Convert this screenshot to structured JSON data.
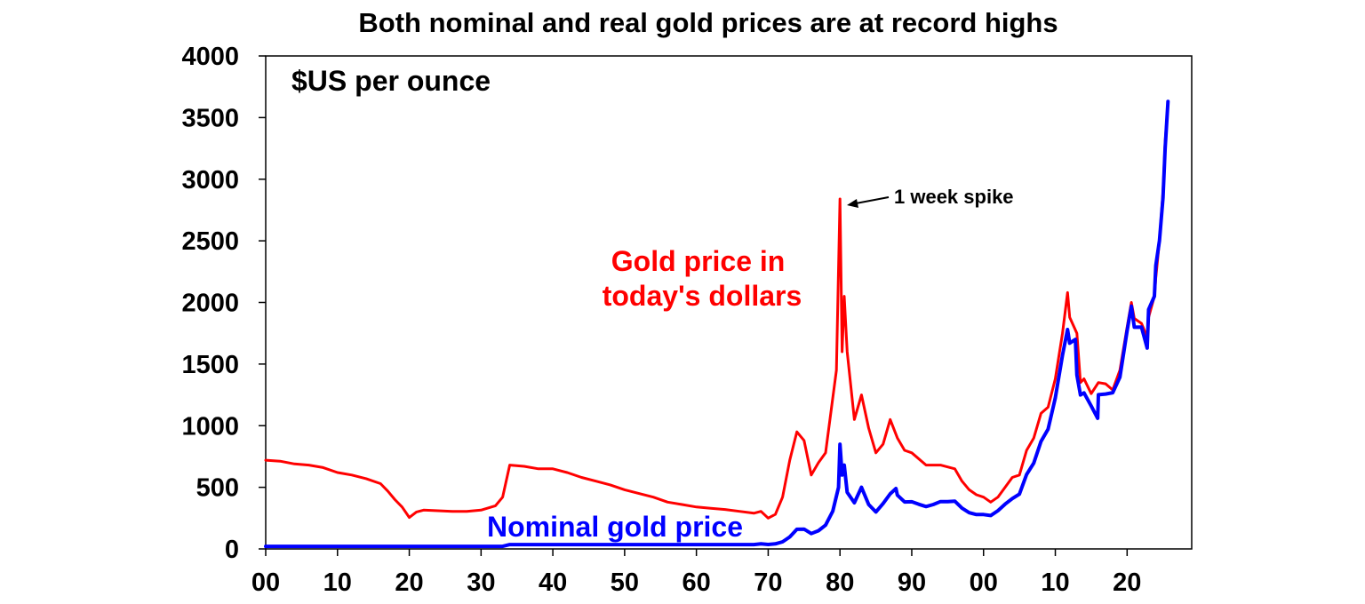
{
  "chart_data": {
    "type": "line",
    "title": "Both nominal and real gold prices are at record highs",
    "unit_label": "$US per ounce",
    "xlabel": "",
    "ylabel": "",
    "xlim": [
      1900,
      2029
    ],
    "ylim": [
      0,
      4000
    ],
    "y_ticks": [
      0,
      500,
      1000,
      1500,
      2000,
      2500,
      3000,
      3500,
      4000
    ],
    "x_ticks": [
      {
        "value": 1900,
        "label": "00"
      },
      {
        "value": 1910,
        "label": "10"
      },
      {
        "value": 1920,
        "label": "20"
      },
      {
        "value": 1930,
        "label": "30"
      },
      {
        "value": 1940,
        "label": "40"
      },
      {
        "value": 1950,
        "label": "50"
      },
      {
        "value": 1960,
        "label": "60"
      },
      {
        "value": 1970,
        "label": "70"
      },
      {
        "value": 1980,
        "label": "80"
      },
      {
        "value": 1990,
        "label": "90"
      },
      {
        "value": 2000,
        "label": "00"
      },
      {
        "value": 2010,
        "label": "10"
      },
      {
        "value": 2020,
        "label": "20"
      }
    ],
    "grid": false,
    "legend": "inline labels",
    "series": [
      {
        "name": "Gold price in today's dollars",
        "label_lines": [
          "Gold price in",
          "today's dollars"
        ],
        "color": "#ff0000",
        "points": [
          [
            1900,
            720
          ],
          [
            1902,
            712
          ],
          [
            1904,
            690
          ],
          [
            1906,
            680
          ],
          [
            1908,
            660
          ],
          [
            1910,
            620
          ],
          [
            1912,
            600
          ],
          [
            1914,
            570
          ],
          [
            1916,
            530
          ],
          [
            1917,
            470
          ],
          [
            1918,
            400
          ],
          [
            1919,
            340
          ],
          [
            1920,
            255
          ],
          [
            1921,
            300
          ],
          [
            1922,
            315
          ],
          [
            1924,
            310
          ],
          [
            1926,
            305
          ],
          [
            1928,
            305
          ],
          [
            1930,
            315
          ],
          [
            1932,
            350
          ],
          [
            1933,
            420
          ],
          [
            1934,
            680
          ],
          [
            1936,
            670
          ],
          [
            1938,
            650
          ],
          [
            1940,
            650
          ],
          [
            1942,
            620
          ],
          [
            1944,
            580
          ],
          [
            1946,
            550
          ],
          [
            1948,
            520
          ],
          [
            1950,
            480
          ],
          [
            1952,
            450
          ],
          [
            1954,
            420
          ],
          [
            1956,
            380
          ],
          [
            1958,
            360
          ],
          [
            1960,
            340
          ],
          [
            1962,
            330
          ],
          [
            1964,
            320
          ],
          [
            1966,
            305
          ],
          [
            1968,
            290
          ],
          [
            1969,
            305
          ],
          [
            1970,
            250
          ],
          [
            1971,
            280
          ],
          [
            1972,
            420
          ],
          [
            1973,
            720
          ],
          [
            1974,
            950
          ],
          [
            1975,
            880
          ],
          [
            1976,
            600
          ],
          [
            1977,
            700
          ],
          [
            1978,
            780
          ],
          [
            1979.5,
            1450
          ],
          [
            1980.0,
            2840
          ],
          [
            1980.3,
            1600
          ],
          [
            1980.6,
            2050
          ],
          [
            1981,
            1600
          ],
          [
            1982,
            1050
          ],
          [
            1983,
            1250
          ],
          [
            1984,
            980
          ],
          [
            1985,
            780
          ],
          [
            1986,
            850
          ],
          [
            1987,
            1050
          ],
          [
            1988,
            900
          ],
          [
            1989,
            800
          ],
          [
            1990,
            780
          ],
          [
            1992,
            680
          ],
          [
            1994,
            680
          ],
          [
            1996,
            650
          ],
          [
            1997,
            550
          ],
          [
            1998,
            480
          ],
          [
            1999,
            440
          ],
          [
            2000,
            420
          ],
          [
            2001,
            380
          ],
          [
            2002,
            420
          ],
          [
            2003,
            500
          ],
          [
            2004,
            580
          ],
          [
            2005,
            600
          ],
          [
            2006,
            800
          ],
          [
            2007,
            900
          ],
          [
            2008,
            1100
          ],
          [
            2009,
            1150
          ],
          [
            2010,
            1380
          ],
          [
            2011,
            1750
          ],
          [
            2011.7,
            2080
          ],
          [
            2012,
            1880
          ],
          [
            2013,
            1750
          ],
          [
            2013.5,
            1350
          ],
          [
            2014,
            1380
          ],
          [
            2015,
            1260
          ],
          [
            2016,
            1350
          ],
          [
            2017,
            1340
          ],
          [
            2018,
            1290
          ],
          [
            2019,
            1450
          ],
          [
            2020,
            1800
          ],
          [
            2020.6,
            2000
          ],
          [
            2021,
            1870
          ],
          [
            2022,
            1830
          ],
          [
            2022.8,
            1720
          ],
          [
            2023,
            1880
          ],
          [
            2023.8,
            2050
          ],
          [
            2024,
            2200
          ],
          [
            2024.5,
            2500
          ],
          [
            2025,
            2900
          ],
          [
            2025.3,
            3300
          ],
          [
            2025.7,
            3620
          ]
        ]
      },
      {
        "name": "Nominal gold price",
        "label_lines": [
          "Nominal gold price"
        ],
        "color": "#0000ff",
        "points": [
          [
            1900,
            20.7
          ],
          [
            1933,
            20.7
          ],
          [
            1934,
            35
          ],
          [
            1968,
            35
          ],
          [
            1969,
            41
          ],
          [
            1970,
            36
          ],
          [
            1971,
            41
          ],
          [
            1972,
            58
          ],
          [
            1973,
            97
          ],
          [
            1974,
            159
          ],
          [
            1975,
            161
          ],
          [
            1976,
            125
          ],
          [
            1977,
            148
          ],
          [
            1978,
            193
          ],
          [
            1979,
            306
          ],
          [
            1979.8,
            500
          ],
          [
            1980.0,
            850
          ],
          [
            1980.3,
            600
          ],
          [
            1980.6,
            680
          ],
          [
            1981,
            460
          ],
          [
            1982,
            375
          ],
          [
            1983,
            500
          ],
          [
            1984,
            360
          ],
          [
            1985,
            300
          ],
          [
            1986,
            368
          ],
          [
            1987,
            447
          ],
          [
            1987.8,
            490
          ],
          [
            1988,
            437
          ],
          [
            1989,
            381
          ],
          [
            1990,
            383
          ],
          [
            1991,
            362
          ],
          [
            1992,
            344
          ],
          [
            1993,
            360
          ],
          [
            1994,
            384
          ],
          [
            1995,
            384
          ],
          [
            1996,
            388
          ],
          [
            1997,
            331
          ],
          [
            1998,
            294
          ],
          [
            1999,
            279
          ],
          [
            2000,
            279
          ],
          [
            2001,
            271
          ],
          [
            2002,
            310
          ],
          [
            2003,
            363
          ],
          [
            2004,
            409
          ],
          [
            2005,
            445
          ],
          [
            2006,
            604
          ],
          [
            2007,
            697
          ],
          [
            2008,
            872
          ],
          [
            2009,
            972
          ],
          [
            2010,
            1225
          ],
          [
            2011,
            1572
          ],
          [
            2011.7,
            1780
          ],
          [
            2012,
            1669
          ],
          [
            2012.8,
            1700
          ],
          [
            2013,
            1411
          ],
          [
            2013.5,
            1250
          ],
          [
            2014,
            1266
          ],
          [
            2015,
            1160
          ],
          [
            2015.9,
            1060
          ],
          [
            2016,
            1251
          ],
          [
            2017,
            1257
          ],
          [
            2018,
            1268
          ],
          [
            2019,
            1393
          ],
          [
            2020,
            1770
          ],
          [
            2020.6,
            1970
          ],
          [
            2021,
            1799
          ],
          [
            2022,
            1800
          ],
          [
            2022.8,
            1630
          ],
          [
            2023,
            1943
          ],
          [
            2023.8,
            2050
          ],
          [
            2024,
            2300
          ],
          [
            2024.5,
            2500
          ],
          [
            2025,
            2850
          ],
          [
            2025.3,
            3250
          ],
          [
            2025.7,
            3630
          ]
        ]
      }
    ],
    "annotations": [
      {
        "text": "1 week spike",
        "x": 1980.0,
        "y": 2840
      }
    ]
  }
}
